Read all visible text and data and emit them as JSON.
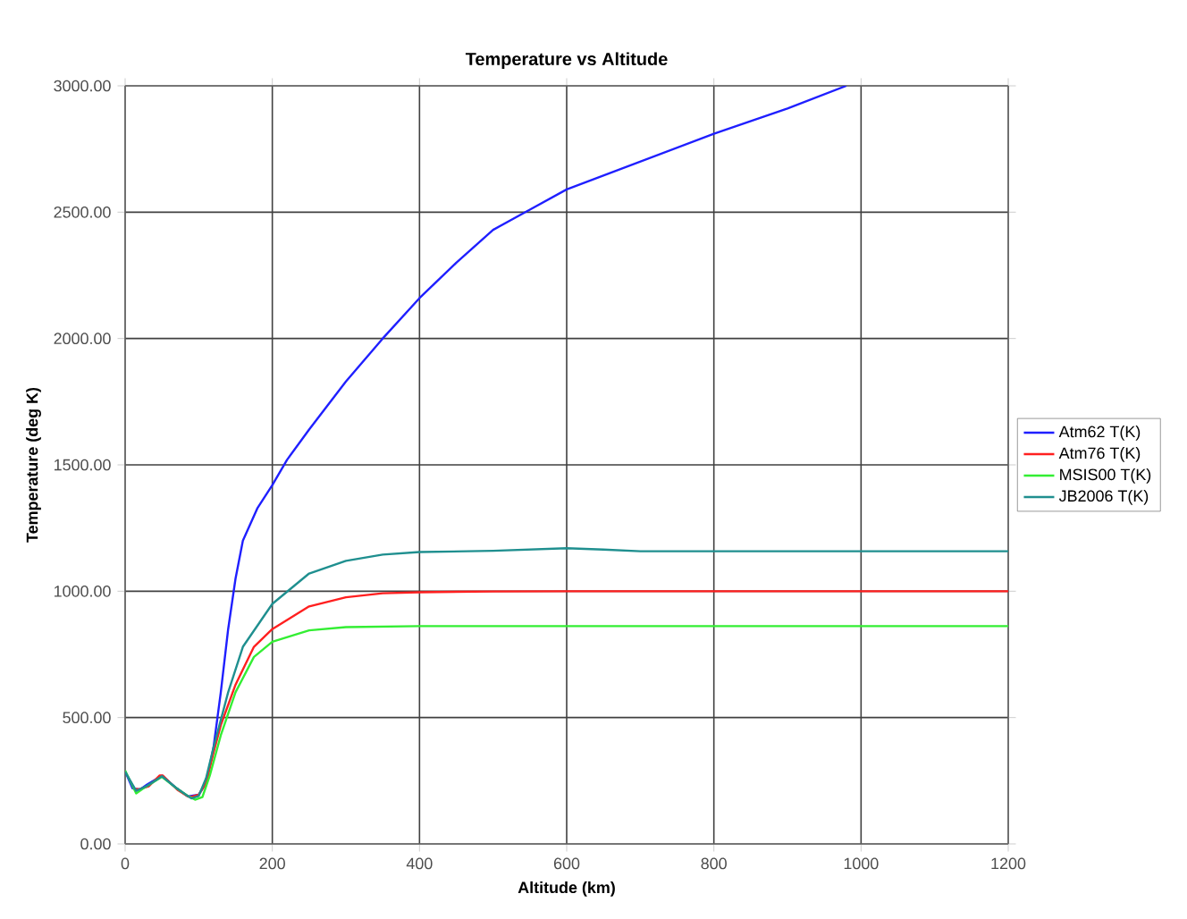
{
  "chart_data": {
    "type": "line",
    "title": "Temperature vs Altitude",
    "xlabel": "Altitude (km)",
    "ylabel": "Temperature (deg K)",
    "xlim": [
      0,
      1200
    ],
    "ylim": [
      0,
      3000
    ],
    "xticks": [
      0,
      200,
      400,
      600,
      800,
      1000,
      1200
    ],
    "yticks": [
      {
        "value": 0,
        "label": "0.00"
      },
      {
        "value": 500,
        "label": "500.00"
      },
      {
        "value": 1000,
        "label": "1000.00"
      },
      {
        "value": 1500,
        "label": "1500.00"
      },
      {
        "value": 2000,
        "label": "2000.00"
      },
      {
        "value": 2500,
        "label": "2500.00"
      },
      {
        "value": 3000,
        "label": "3000.00"
      }
    ],
    "grid": true,
    "legend": "right",
    "marker": "none",
    "line_style": "solid",
    "series": [
      {
        "name": "Atm62 T(K)",
        "color": "#1f1fff",
        "x": [
          0,
          10,
          20,
          30,
          50,
          70,
          85,
          100,
          110,
          120,
          130,
          140,
          150,
          160,
          180,
          200,
          220,
          250,
          300,
          350,
          400,
          450,
          500,
          550,
          600,
          700,
          800,
          900,
          980
        ],
        "values": [
          288,
          220,
          215,
          235,
          270,
          220,
          188,
          195,
          240,
          380,
          600,
          850,
          1050,
          1200,
          1330,
          1420,
          1520,
          1640,
          1830,
          2000,
          2160,
          2300,
          2430,
          2510,
          2590,
          2700,
          2810,
          2910,
          3000
        ]
      },
      {
        "name": "Atm76 T(K)",
        "color": "#ff1f1f",
        "x": [
          11,
          20,
          32,
          47,
          51,
          71,
          86,
          91,
          100,
          110,
          120,
          130,
          150,
          175,
          200,
          250,
          300,
          350,
          400,
          500,
          600,
          1200
        ],
        "values": [
          217,
          217,
          228,
          271,
          271,
          214,
          187,
          187,
          195,
          240,
          360,
          470,
          630,
          780,
          850,
          940,
          976,
          992,
          996,
          999,
          1000,
          1000
        ]
      },
      {
        "name": "MSIS00 T(K)",
        "color": "#33ee33",
        "x": [
          0,
          15,
          25,
          50,
          70,
          85,
          95,
          105,
          115,
          130,
          150,
          175,
          200,
          250,
          300,
          400,
          1200
        ],
        "values": [
          290,
          200,
          220,
          265,
          220,
          190,
          175,
          185,
          270,
          430,
          600,
          740,
          800,
          845,
          858,
          862,
          862
        ]
      },
      {
        "name": "JB2006 T(K)",
        "color": "#1f8f8f",
        "x": [
          0,
          15,
          30,
          50,
          70,
          90,
          100,
          110,
          120,
          140,
          160,
          200,
          250,
          300,
          350,
          400,
          500,
          600,
          650,
          700,
          1200
        ],
        "values": [
          285,
          210,
          230,
          268,
          220,
          180,
          190,
          260,
          380,
          600,
          780,
          950,
          1070,
          1120,
          1145,
          1155,
          1160,
          1170,
          1165,
          1158,
          1158
        ]
      }
    ]
  }
}
